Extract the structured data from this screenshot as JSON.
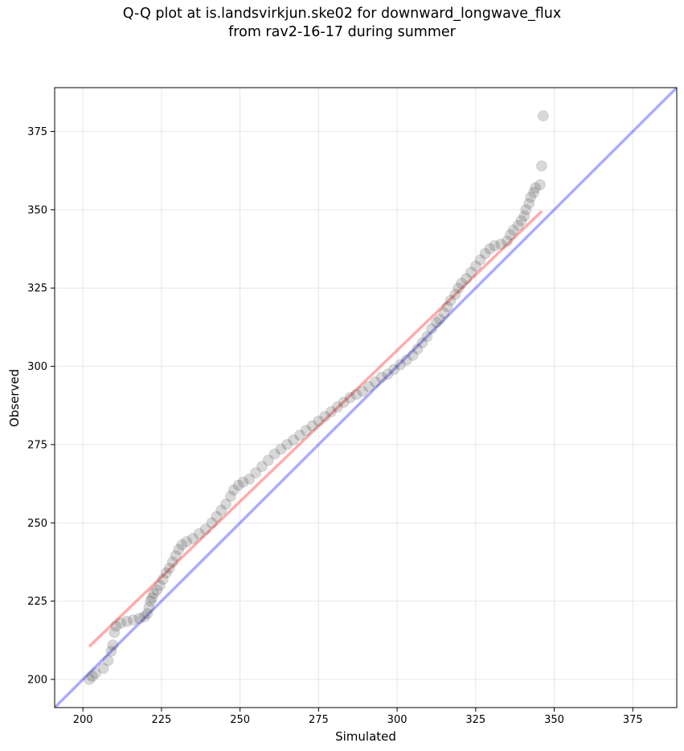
{
  "chart_data": {
    "type": "scatter",
    "title_line1": "Q-Q plot at is.landsvirkjun.ske02 for downward_longwave_flux",
    "title_line2": "from rav2-16-17 during summer",
    "xlabel": "Simulated",
    "ylabel": "Observed",
    "xlim": [
      191,
      389
    ],
    "ylim": [
      191,
      389
    ],
    "xticks": [
      200,
      225,
      250,
      275,
      300,
      325,
      350,
      375
    ],
    "yticks": [
      200,
      225,
      250,
      275,
      300,
      325,
      350,
      375
    ],
    "grid": true,
    "reference_line": {
      "name": "1:1 line",
      "color": "#0000ff",
      "points": [
        [
          191,
          191
        ],
        [
          389,
          389
        ]
      ]
    },
    "fit_line": {
      "name": "fit",
      "color": "#ff0000",
      "points": [
        [
          202,
          210.5
        ],
        [
          346,
          349.5
        ]
      ]
    },
    "points": [
      [
        202,
        200
      ],
      [
        203,
        201
      ],
      [
        204,
        202
      ],
      [
        206.5,
        203.5
      ],
      [
        208,
        206
      ],
      [
        209,
        209
      ],
      [
        209.5,
        211
      ],
      [
        210,
        215
      ],
      [
        210.5,
        217
      ],
      [
        212,
        218
      ],
      [
        214,
        218.5
      ],
      [
        216,
        219
      ],
      [
        218,
        219.5
      ],
      [
        219.5,
        220
      ],
      [
        220.5,
        221
      ],
      [
        221,
        223
      ],
      [
        221.5,
        225
      ],
      [
        222,
        226
      ],
      [
        222.5,
        227.5
      ],
      [
        223.5,
        228.5
      ],
      [
        224.5,
        230
      ],
      [
        225.5,
        232
      ],
      [
        226.5,
        234
      ],
      [
        227.5,
        235.5
      ],
      [
        228.5,
        237.5
      ],
      [
        229.5,
        239.5
      ],
      [
        230.5,
        241.5
      ],
      [
        231.5,
        243
      ],
      [
        233,
        244
      ],
      [
        235,
        245
      ],
      [
        237,
        246.5
      ],
      [
        239,
        248
      ],
      [
        241,
        250
      ],
      [
        242.5,
        252
      ],
      [
        244,
        254
      ],
      [
        245.5,
        256
      ],
      [
        247,
        258.5
      ],
      [
        248,
        260.5
      ],
      [
        249.5,
        262
      ],
      [
        251,
        263
      ],
      [
        253,
        264
      ],
      [
        255,
        266
      ],
      [
        257,
        268
      ],
      [
        259,
        270
      ],
      [
        261,
        272
      ],
      [
        263,
        273.5
      ],
      [
        265,
        275
      ],
      [
        267,
        276.5
      ],
      [
        269,
        278
      ],
      [
        271,
        279.5
      ],
      [
        273,
        281
      ],
      [
        275,
        282.5
      ],
      [
        277,
        284
      ],
      [
        279,
        285.5
      ],
      [
        281,
        287
      ],
      [
        283,
        288.5
      ],
      [
        285,
        290
      ],
      [
        287,
        291
      ],
      [
        289,
        292
      ],
      [
        291,
        293.5
      ],
      [
        293,
        295
      ],
      [
        295,
        296.5
      ],
      [
        297,
        297.5
      ],
      [
        299,
        299
      ],
      [
        301,
        300.5
      ],
      [
        303,
        302
      ],
      [
        305,
        303.5
      ],
      [
        306.5,
        305.5
      ],
      [
        308,
        307.5
      ],
      [
        309.5,
        309.5
      ],
      [
        311,
        312
      ],
      [
        312.5,
        314
      ],
      [
        313.5,
        315
      ],
      [
        315,
        317
      ],
      [
        316,
        319
      ],
      [
        317,
        321
      ],
      [
        318.5,
        323
      ],
      [
        319.5,
        325
      ],
      [
        320.5,
        326.5
      ],
      [
        322,
        328
      ],
      [
        323.5,
        330
      ],
      [
        325,
        332
      ],
      [
        326.5,
        334
      ],
      [
        328,
        336
      ],
      [
        329.5,
        337.5
      ],
      [
        331,
        338.5
      ],
      [
        333,
        339
      ],
      [
        335,
        340
      ],
      [
        336,
        342
      ],
      [
        337,
        343.5
      ],
      [
        338.5,
        345
      ],
      [
        339.5,
        346.5
      ],
      [
        340.5,
        348
      ],
      [
        341,
        350
      ],
      [
        342,
        352
      ],
      [
        342.5,
        354
      ],
      [
        343.5,
        355.5
      ],
      [
        344,
        357
      ],
      [
        345.5,
        358
      ],
      [
        346,
        364
      ],
      [
        346.5,
        380
      ]
    ]
  }
}
